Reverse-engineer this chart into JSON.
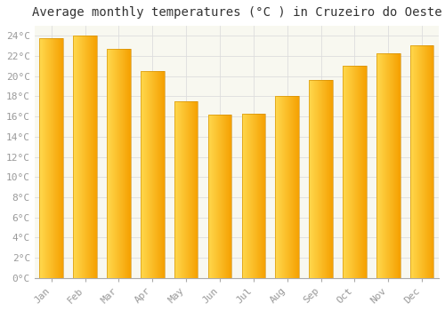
{
  "title": "Average monthly temperatures (°C ) in Cruzeiro do Oeste",
  "months": [
    "Jan",
    "Feb",
    "Mar",
    "Apr",
    "May",
    "Jun",
    "Jul",
    "Aug",
    "Sep",
    "Oct",
    "Nov",
    "Dec"
  ],
  "values": [
    23.8,
    24.0,
    22.7,
    20.5,
    17.5,
    16.2,
    16.3,
    18.0,
    19.6,
    21.0,
    22.3,
    23.1
  ],
  "bar_color_left": "#FFD84D",
  "bar_color_right": "#F5A000",
  "background_color": "#FFFFFF",
  "plot_bg_color": "#F8F8F0",
  "grid_color": "#DDDDDD",
  "title_fontsize": 10,
  "tick_fontsize": 8,
  "tick_color": "#999999",
  "ylim": [
    0,
    25
  ],
  "yticks": [
    0,
    2,
    4,
    6,
    8,
    10,
    12,
    14,
    16,
    18,
    20,
    22,
    24
  ],
  "bar_width": 0.7
}
